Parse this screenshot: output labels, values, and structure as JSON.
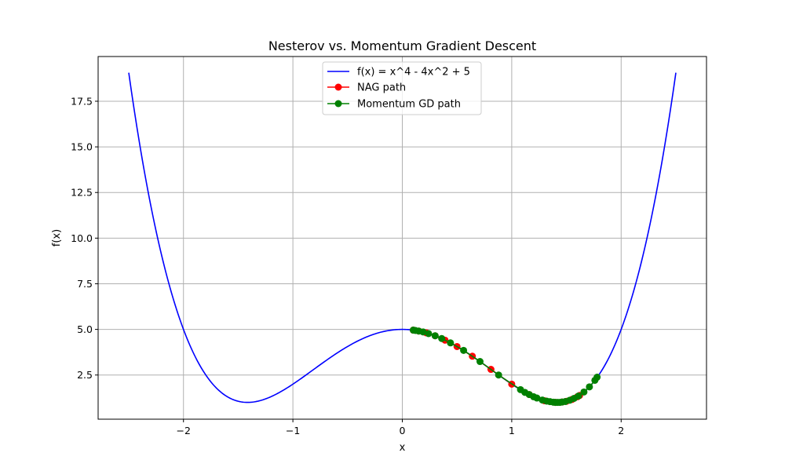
{
  "chart_data": {
    "type": "line",
    "title": "Nesterov vs. Momentum Gradient Descent",
    "xlabel": "x",
    "ylabel": "f(x)",
    "xlim": [
      -2.78,
      2.78
    ],
    "ylim": [
      0.08,
      19.95
    ],
    "xticks": [
      -2,
      -1,
      0,
      1,
      2
    ],
    "xtick_labels": [
      "−2",
      "−1",
      "0",
      "1",
      "2"
    ],
    "yticks": [
      2.5,
      5.0,
      7.5,
      10.0,
      12.5,
      15.0,
      17.5
    ],
    "ytick_labels": [
      "2.5",
      "5.0",
      "7.5",
      "10.0",
      "12.5",
      "15.0",
      "17.5"
    ],
    "grid": true,
    "legend_position": "upper-center",
    "series": [
      {
        "name": "f(x) = x^4 - 4x^2 + 5",
        "kind": "function",
        "expression": "x^4 - 4x^2 + 5",
        "x_range": [
          -2.5,
          2.5
        ],
        "color": "#0000ff"
      },
      {
        "name": "NAG path",
        "kind": "path",
        "color": "#ff0000",
        "x": [
          0.1,
          0.15,
          0.22,
          0.3,
          0.39,
          0.5,
          0.64,
          0.81,
          1.0,
          1.16,
          1.3,
          1.4,
          1.46,
          1.5,
          1.55,
          1.6,
          1.62
        ],
        "y": [
          4.96,
          4.91,
          4.81,
          4.65,
          4.41,
          4.06,
          3.53,
          2.81,
          2.0,
          1.43,
          1.09,
          1.0,
          1.02,
          1.06,
          1.16,
          1.31,
          1.38
        ]
      },
      {
        "name": "Momentum GD path",
        "kind": "path",
        "color": "#008000",
        "x": [
          0.1,
          0.12,
          0.15,
          0.19,
          0.24,
          0.3,
          0.36,
          0.44,
          0.56,
          0.71,
          0.88,
          1.08,
          1.12,
          1.16,
          1.2,
          1.23,
          1.28,
          1.32,
          1.35,
          1.38,
          1.4,
          1.42,
          1.44,
          1.46,
          1.49,
          1.53,
          1.57,
          1.61,
          1.66,
          1.71,
          1.76,
          1.78
        ],
        "y": [
          4.96,
          4.94,
          4.91,
          4.86,
          4.77,
          4.65,
          4.5,
          4.26,
          3.85,
          3.24,
          2.5,
          1.7,
          1.55,
          1.43,
          1.31,
          1.24,
          1.13,
          1.07,
          1.04,
          1.01,
          1.0,
          1.0,
          1.0,
          1.02,
          1.05,
          1.12,
          1.22,
          1.35,
          1.57,
          1.85,
          2.21,
          2.38
        ]
      }
    ]
  }
}
